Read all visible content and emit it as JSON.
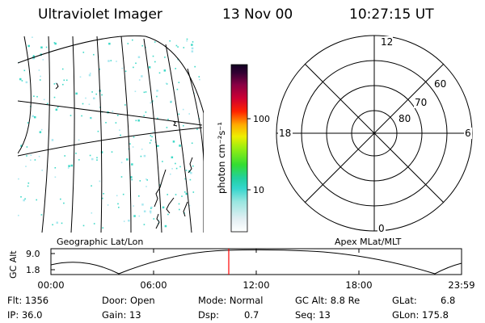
{
  "header": {
    "instrument": "Ultraviolet Imager",
    "date": "13 Nov 00",
    "time": "10:27:15 UT"
  },
  "colorbar": {
    "unit_label": "photon cm⁻²s⁻¹",
    "ticks": [
      "100",
      "10"
    ]
  },
  "polar_plot": {
    "mlt_labels": {
      "top": "12",
      "left": "18",
      "right": "6",
      "bottom": "0"
    },
    "lat_labels": [
      "60",
      "70",
      "80"
    ]
  },
  "panel_labels": {
    "geographic": "Geographic Lat/Lon",
    "apex": "Apex MLat/MLT"
  },
  "altitude_panel": {
    "ylabel": "GC Alt",
    "y_ticks": [
      "9.0",
      "1.8"
    ],
    "x_ticks": [
      "00:00",
      "06:00",
      "12:00",
      "18:00",
      "23:59"
    ],
    "marker_time": "10:27:15",
    "marker_color": "#ff0000"
  },
  "info": {
    "flt": "Flt: 1356",
    "ip": "IP: 36.0",
    "door": "Door: Open",
    "gain": "Gain: 13",
    "mode": "Mode: Normal",
    "dsp_label": "Dsp:",
    "dsp_value": "0.7",
    "gc_alt": "GC Alt: 8.8 Re",
    "seq": "Seq: 13",
    "glat_label": "GLat:",
    "glat_value": "6.8",
    "glon": "GLon: 175.8"
  },
  "colors": {
    "speckle": "#3fd9c8",
    "grid": "#000000",
    "marker": "#ff0000"
  }
}
